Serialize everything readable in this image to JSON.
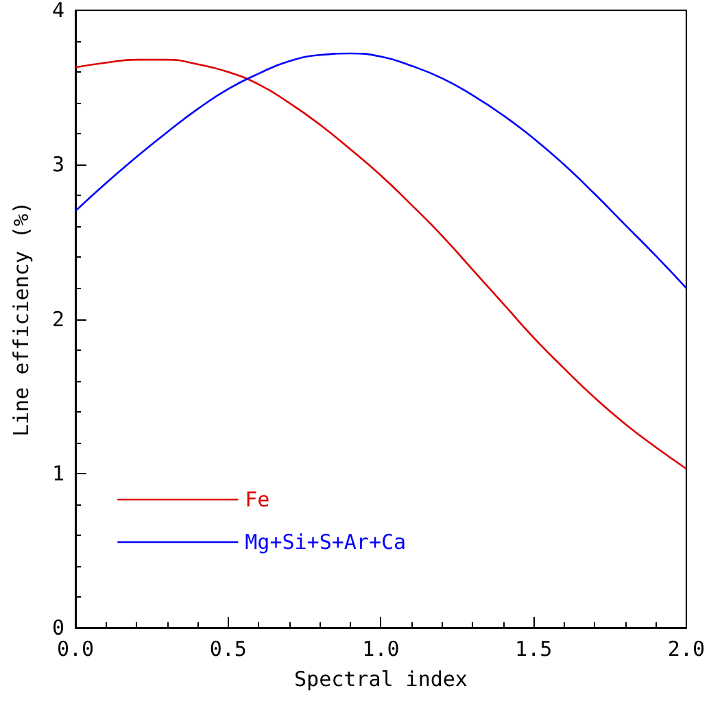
{
  "chart_data": {
    "type": "line",
    "xlabel": "Spectral index",
    "ylabel": "Line efficiency (%)",
    "x": [
      0,
      0.1,
      0.2,
      0.3,
      0.4,
      0.5,
      0.6,
      0.7,
      0.8,
      0.9,
      1.0,
      1.1,
      1.2,
      1.3,
      1.4,
      1.5,
      1.6,
      1.7,
      1.8,
      1.9,
      2.0
    ],
    "series": [
      {
        "name": "Fe",
        "color": "#dd0000",
        "values": [
          3.63,
          3.66,
          3.68,
          3.68,
          3.65,
          3.6,
          3.52,
          3.4,
          3.26,
          3.1,
          2.93,
          2.74,
          2.54,
          2.32,
          2.1,
          1.88,
          1.68,
          1.49,
          1.32,
          1.17,
          1.03
        ]
      },
      {
        "name": "Mg+Si+S+Ar+Ca",
        "color": "#0000ff",
        "values": [
          2.7,
          2.88,
          3.05,
          3.21,
          3.36,
          3.49,
          3.59,
          3.67,
          3.71,
          3.72,
          3.7,
          3.64,
          3.56,
          3.45,
          3.32,
          3.17,
          3.0,
          2.81,
          2.61,
          2.41,
          2.2
        ]
      }
    ],
    "xlim": [
      0,
      2
    ],
    "xticks": [
      {
        "value": 0,
        "label": "0.0"
      },
      0.5,
      {
        "value": 1,
        "label": "1.0"
      },
      1.5,
      {
        "value": 2,
        "label": "2.0"
      }
    ],
    "ylim": [
      0,
      4
    ],
    "yticks": [
      0,
      1,
      2,
      3,
      4
    ],
    "grid": false,
    "legend": "bottom left",
    "marker": "none",
    "line_style": "solid"
  }
}
